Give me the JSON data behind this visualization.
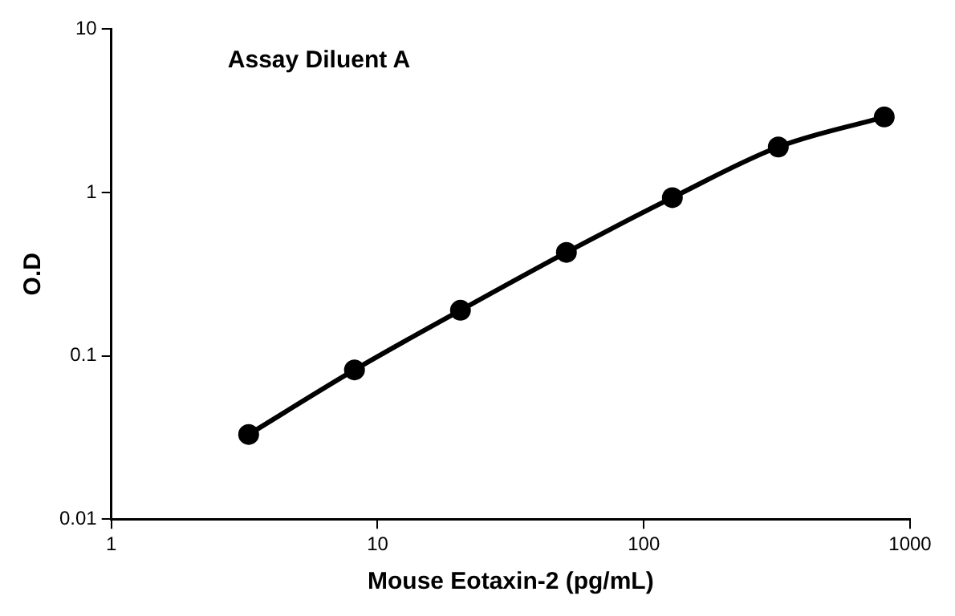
{
  "chart_data": {
    "type": "line",
    "title": "Assay Diluent A",
    "xlabel": "Mouse Eotaxin-2 (pg/mL)",
    "ylabel": "O.D",
    "x": [
      3.28,
      8.19,
      20.48,
      51.2,
      128,
      320,
      800
    ],
    "series": [
      {
        "color": "#000000",
        "values": [
          0.033,
          0.082,
          0.19,
          0.43,
          0.93,
          1.9,
          2.9
        ]
      }
    ],
    "log": "xy",
    "xlim": [
      1,
      1000
    ],
    "xticks": [
      1,
      10,
      100,
      1000
    ],
    "ylim": [
      0.01,
      10
    ],
    "yticks": [
      0.01,
      0.1,
      1,
      10
    ],
    "grid": false,
    "legend": false,
    "marker": "circle",
    "line_style": "solid"
  }
}
